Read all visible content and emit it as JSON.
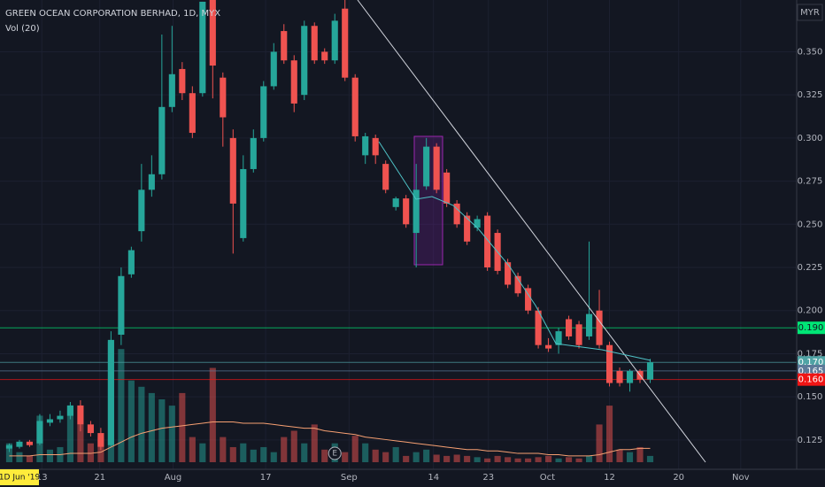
{
  "chart_data": {
    "type": "candlestick",
    "title": "GREEN OCEAN CORPORATION BERHAD, 1D, MYX",
    "indicator_label": "Vol (20)",
    "currency": "MYR",
    "interval_badge": "1D Jun '19",
    "earnings_marker": {
      "label": "E",
      "index": 32
    },
    "up_color": "#26a69a",
    "down_color": "#ef5350",
    "grid": true,
    "ylim": [
      0.108,
      0.38
    ],
    "yticks": [
      {
        "value": 0.125,
        "label": "0.125"
      },
      {
        "value": 0.15,
        "label": "0.150"
      },
      {
        "value": 0.175,
        "label": "0.175"
      },
      {
        "value": 0.2,
        "label": "0.200"
      },
      {
        "value": 0.225,
        "label": "0.225"
      },
      {
        "value": 0.25,
        "label": "0.250"
      },
      {
        "value": 0.275,
        "label": "0.275"
      },
      {
        "value": 0.3,
        "label": "0.300"
      },
      {
        "value": 0.325,
        "label": "0.325"
      },
      {
        "value": 0.35,
        "label": "0.350"
      }
    ],
    "xlim": [
      -0.91,
      77.4
    ],
    "xticks": [
      {
        "value": 3.2,
        "label": "13"
      },
      {
        "value": 8.9,
        "label": "21"
      },
      {
        "value": 16.1,
        "label": "Aug"
      },
      {
        "value": 25.2,
        "label": "17"
      },
      {
        "value": 33.4,
        "label": "Sep"
      },
      {
        "value": 41.7,
        "label": "14"
      },
      {
        "value": 47.1,
        "label": "23"
      },
      {
        "value": 52.9,
        "label": "Oct"
      },
      {
        "value": 59,
        "label": "12"
      },
      {
        "value": 65.8,
        "label": "20"
      },
      {
        "value": 71.9,
        "label": "Nov"
      }
    ],
    "price_lines": [
      {
        "value": 0.19,
        "label": "0.190",
        "color": "#00e676",
        "text_color": "#131722"
      },
      {
        "value": 0.17,
        "label": "0.170",
        "color": "#4fa3a5",
        "text_color": "#ffffff"
      },
      {
        "value": 0.165,
        "label": "0.165",
        "color": "#5d7a99",
        "text_color": "#ffffff"
      },
      {
        "value": 0.16,
        "label": "0.160",
        "color": "#f01515",
        "text_color": "#ffffff"
      }
    ],
    "open": [
      0.12,
      0.121,
      0.124,
      0.123,
      0.135,
      0.137,
      0.139,
      0.145,
      0.134,
      0.129,
      0.122,
      0.186,
      0.221,
      0.246,
      0.27,
      0.279,
      0.318,
      0.34,
      0.326,
      0.326,
      0.38,
      0.335,
      0.3,
      0.242,
      0.282,
      0.3,
      0.33,
      0.362,
      0.345,
      0.325,
      0.365,
      0.35,
      0.345,
      0.375,
      0.335,
      0.29,
      0.3,
      0.285,
      0.26,
      0.265,
      0.245,
      0.272,
      0.295,
      0.28,
      0.262,
      0.255,
      0.248,
      0.255,
      0.245,
      0.228,
      0.22,
      0.213,
      0.2,
      0.18,
      0.18,
      0.195,
      0.192,
      0.185,
      0.2,
      0.18,
      0.165,
      0.158,
      0.165,
      0.16
    ],
    "high": [
      0.123,
      0.125,
      0.125,
      0.14,
      0.14,
      0.142,
      0.147,
      0.148,
      0.136,
      0.132,
      0.188,
      0.225,
      0.237,
      0.285,
      0.29,
      0.36,
      0.365,
      0.344,
      0.33,
      0.379,
      0.39,
      0.338,
      0.305,
      0.29,
      0.305,
      0.333,
      0.355,
      0.366,
      0.348,
      0.368,
      0.367,
      0.352,
      0.372,
      0.382,
      0.337,
      0.303,
      0.302,
      0.287,
      0.266,
      0.267,
      0.285,
      0.3,
      0.297,
      0.282,
      0.264,
      0.257,
      0.255,
      0.257,
      0.247,
      0.23,
      0.222,
      0.215,
      0.202,
      0.184,
      0.19,
      0.197,
      0.194,
      0.24,
      0.212,
      0.182,
      0.167,
      0.166,
      0.166,
      0.172
    ],
    "low": [
      0.118,
      0.12,
      0.121,
      0.122,
      0.133,
      0.135,
      0.137,
      0.13,
      0.127,
      0.119,
      0.121,
      0.18,
      0.219,
      0.24,
      0.266,
      0.276,
      0.315,
      0.322,
      0.3,
      0.324,
      0.323,
      0.295,
      0.233,
      0.24,
      0.28,
      0.298,
      0.328,
      0.343,
      0.315,
      0.322,
      0.343,
      0.343,
      0.343,
      0.333,
      0.298,
      0.285,
      0.285,
      0.268,
      0.258,
      0.248,
      0.225,
      0.27,
      0.268,
      0.26,
      0.248,
      0.238,
      0.246,
      0.223,
      0.221,
      0.213,
      0.208,
      0.198,
      0.178,
      0.176,
      0.175,
      0.183,
      0.178,
      0.183,
      0.178,
      0.156,
      0.156,
      0.153,
      0.158,
      0.158
    ],
    "close": [
      0.122,
      0.124,
      0.122,
      0.136,
      0.137,
      0.139,
      0.145,
      0.134,
      0.129,
      0.121,
      0.183,
      0.22,
      0.235,
      0.27,
      0.279,
      0.318,
      0.337,
      0.326,
      0.303,
      0.379,
      0.342,
      0.312,
      0.262,
      0.282,
      0.3,
      0.33,
      0.35,
      0.345,
      0.32,
      0.365,
      0.345,
      0.345,
      0.368,
      0.335,
      0.301,
      0.301,
      0.29,
      0.27,
      0.265,
      0.25,
      0.27,
      0.295,
      0.27,
      0.262,
      0.25,
      0.24,
      0.253,
      0.225,
      0.223,
      0.215,
      0.21,
      0.2,
      0.18,
      0.178,
      0.188,
      0.185,
      0.18,
      0.198,
      0.18,
      0.158,
      0.158,
      0.165,
      0.16,
      0.17
    ],
    "volume": {
      "ylim": [
        0,
        100
      ],
      "ma_color": "#f7a072",
      "values": [
        15,
        8,
        5,
        37,
        10,
        12,
        45,
        30,
        15,
        20,
        96,
        90,
        65,
        60,
        55,
        50,
        45,
        55,
        20,
        15,
        75,
        20,
        12,
        15,
        10,
        12,
        8,
        20,
        25,
        15,
        30,
        10,
        15,
        8,
        21,
        15,
        10,
        8,
        12,
        5,
        8,
        10,
        6,
        5,
        6,
        5,
        4,
        3,
        5,
        4,
        3,
        3,
        4,
        5,
        3,
        4,
        3,
        5,
        30,
        45,
        10,
        8,
        12,
        5
      ],
      "ma": [
        5,
        5,
        5,
        6,
        6,
        6,
        7,
        7,
        7,
        8,
        12,
        16,
        20,
        23,
        25,
        27,
        28,
        29,
        30,
        31,
        32,
        32,
        32,
        31,
        31,
        31,
        30,
        29,
        28,
        27,
        27,
        25,
        24,
        23,
        22,
        20,
        19,
        18,
        17,
        16,
        15,
        14,
        13,
        12,
        11,
        10,
        10,
        9,
        9,
        8,
        7,
        7,
        7,
        6,
        6,
        5,
        5,
        5,
        6,
        8,
        10,
        10,
        11,
        11
      ]
    }
  }
}
